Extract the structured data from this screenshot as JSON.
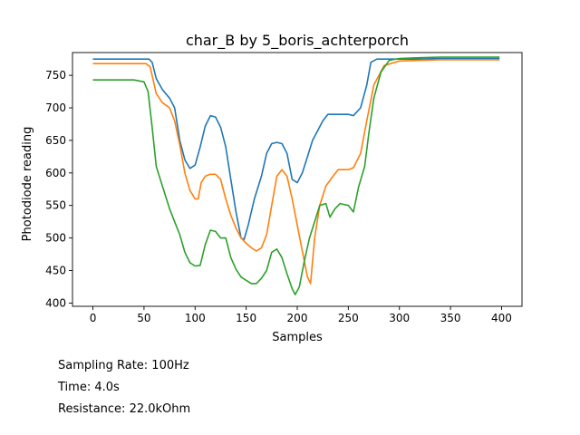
{
  "chart_data": {
    "type": "line",
    "title": "char_B by 5_boris_achterporch",
    "xlabel": "Samples",
    "ylabel": "Photodiode reading",
    "xlim": [
      -20,
      420
    ],
    "ylim": [
      395,
      785
    ],
    "xticks": [
      0,
      50,
      100,
      150,
      200,
      250,
      300,
      350,
      400
    ],
    "yticks": [
      400,
      450,
      500,
      550,
      600,
      650,
      700,
      750
    ],
    "grid": false,
    "legend": "none",
    "series": [
      {
        "color": "#1f77b4",
        "points": [
          [
            0,
            775
          ],
          [
            10,
            775
          ],
          [
            20,
            775
          ],
          [
            30,
            775
          ],
          [
            40,
            775
          ],
          [
            50,
            775
          ],
          [
            55,
            775
          ],
          [
            58,
            770
          ],
          [
            62,
            745
          ],
          [
            68,
            728
          ],
          [
            75,
            715
          ],
          [
            80,
            700
          ],
          [
            85,
            650
          ],
          [
            90,
            620
          ],
          [
            95,
            607
          ],
          [
            100,
            612
          ],
          [
            105,
            640
          ],
          [
            110,
            672
          ],
          [
            115,
            688
          ],
          [
            120,
            686
          ],
          [
            125,
            670
          ],
          [
            130,
            640
          ],
          [
            135,
            590
          ],
          [
            140,
            540
          ],
          [
            145,
            500
          ],
          [
            148,
            498
          ],
          [
            152,
            520
          ],
          [
            158,
            560
          ],
          [
            165,
            595
          ],
          [
            170,
            630
          ],
          [
            175,
            645
          ],
          [
            180,
            647
          ],
          [
            185,
            645
          ],
          [
            190,
            630
          ],
          [
            195,
            590
          ],
          [
            200,
            585
          ],
          [
            205,
            600
          ],
          [
            210,
            625
          ],
          [
            215,
            650
          ],
          [
            220,
            665
          ],
          [
            225,
            680
          ],
          [
            230,
            690
          ],
          [
            240,
            690
          ],
          [
            250,
            690
          ],
          [
            255,
            688
          ],
          [
            262,
            700
          ],
          [
            268,
            735
          ],
          [
            272,
            770
          ],
          [
            278,
            775
          ],
          [
            290,
            775
          ],
          [
            300,
            775
          ],
          [
            320,
            775
          ],
          [
            340,
            776
          ],
          [
            360,
            776
          ],
          [
            380,
            776
          ],
          [
            398,
            776
          ]
        ]
      },
      {
        "color": "#ff7f0e",
        "points": [
          [
            0,
            768
          ],
          [
            20,
            768
          ],
          [
            40,
            768
          ],
          [
            52,
            768
          ],
          [
            56,
            763
          ],
          [
            62,
            722
          ],
          [
            68,
            708
          ],
          [
            75,
            700
          ],
          [
            80,
            680
          ],
          [
            85,
            643
          ],
          [
            90,
            600
          ],
          [
            95,
            573
          ],
          [
            100,
            560
          ],
          [
            103,
            560
          ],
          [
            106,
            585
          ],
          [
            110,
            595
          ],
          [
            115,
            598
          ],
          [
            120,
            598
          ],
          [
            125,
            590
          ],
          [
            130,
            560
          ],
          [
            135,
            535
          ],
          [
            140,
            515
          ],
          [
            145,
            500
          ],
          [
            150,
            492
          ],
          [
            155,
            485
          ],
          [
            160,
            480
          ],
          [
            165,
            485
          ],
          [
            170,
            505
          ],
          [
            175,
            550
          ],
          [
            180,
            595
          ],
          [
            185,
            605
          ],
          [
            190,
            595
          ],
          [
            195,
            560
          ],
          [
            200,
            520
          ],
          [
            205,
            480
          ],
          [
            210,
            440
          ],
          [
            213,
            430
          ],
          [
            217,
            500
          ],
          [
            222,
            550
          ],
          [
            228,
            580
          ],
          [
            235,
            595
          ],
          [
            240,
            605
          ],
          [
            250,
            605
          ],
          [
            255,
            608
          ],
          [
            262,
            630
          ],
          [
            268,
            680
          ],
          [
            275,
            735
          ],
          [
            285,
            765
          ],
          [
            300,
            772
          ],
          [
            320,
            773
          ],
          [
            340,
            774
          ],
          [
            360,
            774
          ],
          [
            380,
            774
          ],
          [
            398,
            774
          ]
        ]
      },
      {
        "color": "#2ca02c",
        "points": [
          [
            0,
            743
          ],
          [
            20,
            743
          ],
          [
            40,
            743
          ],
          [
            50,
            740
          ],
          [
            54,
            725
          ],
          [
            58,
            670
          ],
          [
            62,
            610
          ],
          [
            68,
            580
          ],
          [
            75,
            545
          ],
          [
            80,
            525
          ],
          [
            85,
            505
          ],
          [
            90,
            478
          ],
          [
            95,
            462
          ],
          [
            100,
            457
          ],
          [
            105,
            458
          ],
          [
            110,
            490
          ],
          [
            115,
            512
          ],
          [
            120,
            510
          ],
          [
            125,
            500
          ],
          [
            130,
            500
          ],
          [
            135,
            470
          ],
          [
            140,
            452
          ],
          [
            145,
            440
          ],
          [
            150,
            435
          ],
          [
            155,
            430
          ],
          [
            160,
            430
          ],
          [
            165,
            438
          ],
          [
            170,
            450
          ],
          [
            175,
            478
          ],
          [
            180,
            483
          ],
          [
            185,
            470
          ],
          [
            190,
            445
          ],
          [
            195,
            422
          ],
          [
            198,
            413
          ],
          [
            202,
            425
          ],
          [
            207,
            465
          ],
          [
            212,
            500
          ],
          [
            218,
            530
          ],
          [
            222,
            550
          ],
          [
            228,
            553
          ],
          [
            232,
            532
          ],
          [
            237,
            545
          ],
          [
            242,
            553
          ],
          [
            250,
            550
          ],
          [
            255,
            540
          ],
          [
            260,
            578
          ],
          [
            266,
            610
          ],
          [
            270,
            660
          ],
          [
            275,
            715
          ],
          [
            282,
            755
          ],
          [
            290,
            773
          ],
          [
            300,
            776
          ],
          [
            320,
            777
          ],
          [
            340,
            778
          ],
          [
            360,
            778
          ],
          [
            380,
            778
          ],
          [
            398,
            778
          ]
        ]
      }
    ]
  },
  "info": {
    "sampling_rate": "Sampling Rate: 100Hz",
    "time": "Time: 4.0s",
    "resistance": "Resistance: 22.0kOhm"
  }
}
